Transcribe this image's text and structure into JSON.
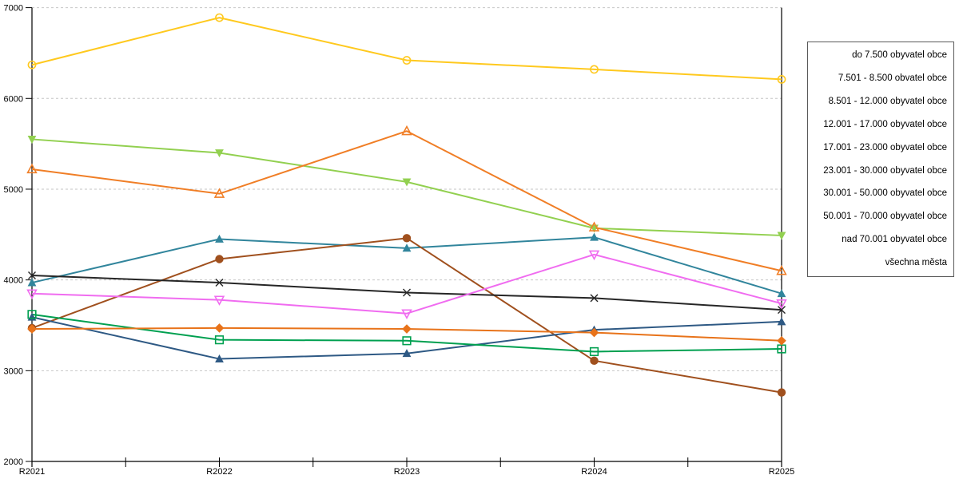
{
  "chart_data": {
    "type": "line",
    "title": "",
    "xlabel": "",
    "ylabel": "",
    "x_categories": [
      "R2021",
      "R2022",
      "R2023",
      "R2024",
      "R2025"
    ],
    "ylim": [
      2000,
      7000
    ],
    "yticks": [
      2000,
      3000,
      4000,
      5000,
      6000,
      7000
    ],
    "grid": "horizontal-dashed",
    "grid_color": "#c6c6c6",
    "axis_color": "#000000",
    "legend_position": "right-box-no-swatches",
    "series": [
      {
        "name": "do 7.500 obyvatel obce",
        "color": "#FFC91E",
        "marker": "circle-open",
        "values": [
          6370,
          6890,
          6420,
          6320,
          6210
        ]
      },
      {
        "name": "7.501 - 8.500 obvatel obce",
        "color": "#92D050",
        "marker": "triangle-down-filled",
        "values": [
          5550,
          5400,
          5080,
          4570,
          4490
        ]
      },
      {
        "name": "8.501 - 12.000 obyvatel obce",
        "color": "#F07E26",
        "marker": "triangle-up-open",
        "values": [
          5220,
          4950,
          5640,
          4580,
          4100
        ]
      },
      {
        "name": "12.001 - 17.000 obyvatel obce",
        "color": "#31859C",
        "marker": "triangle-up-filled",
        "values": [
          3970,
          4450,
          4350,
          4470,
          3850
        ]
      },
      {
        "name": "17.001 - 23.000 obyvatel obce",
        "color": "#A0501E",
        "marker": "circle-filled",
        "values": [
          3470,
          4230,
          4460,
          3110,
          2760
        ]
      },
      {
        "name": "23.001 - 30.000 obyvatel obce",
        "color": "#262626",
        "marker": "x-cross",
        "values": [
          4050,
          3970,
          3860,
          3800,
          3670
        ]
      },
      {
        "name": "30.001 - 50.000 obyvatel obce",
        "color": "#F06CF0",
        "marker": "triangle-down-open",
        "values": [
          3850,
          3780,
          3630,
          4280,
          3740
        ]
      },
      {
        "name": "50.001 - 70.000 obyvatel obce",
        "color": "#2E5984",
        "marker": "triangle-up-filled",
        "values": [
          3590,
          3130,
          3190,
          3450,
          3540
        ]
      },
      {
        "name": "nad 70.001 obyvatel obce",
        "color": "#00A050",
        "marker": "square-open",
        "values": [
          3620,
          3340,
          3330,
          3210,
          3240
        ]
      },
      {
        "name": "všechna města",
        "color": "#E8731A",
        "marker": "diamond-filled",
        "values": [
          3460,
          3470,
          3460,
          3420,
          3330
        ]
      }
    ]
  }
}
